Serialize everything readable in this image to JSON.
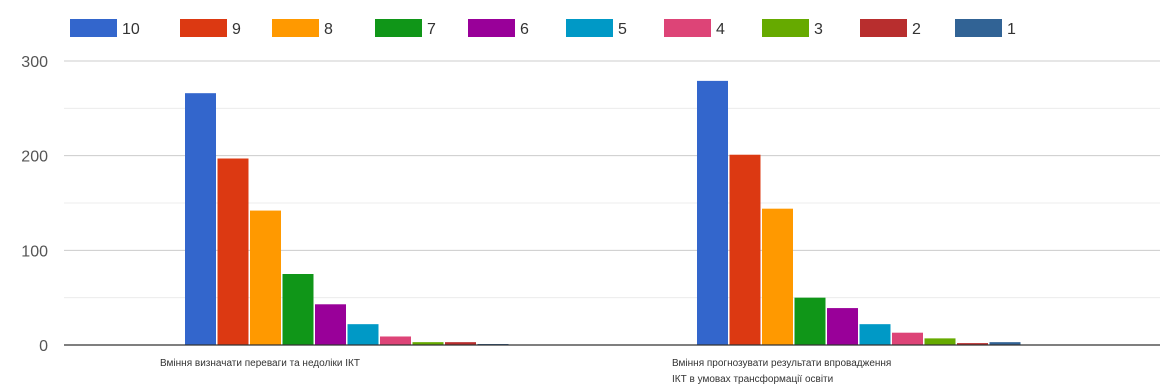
{
  "chart_data": {
    "type": "bar",
    "categories": [
      [
        "Вміння визначати переваги та недоліки ІКТ"
      ],
      [
        "Вміння прогнозувати результати впровадження",
        "ІКТ в умовах трансформації освіти"
      ]
    ],
    "series": [
      {
        "name": "10",
        "color": "#3366cc",
        "values": [
          266,
          279
        ]
      },
      {
        "name": "9",
        "color": "#dc3912",
        "values": [
          197,
          201
        ]
      },
      {
        "name": "8",
        "color": "#ff9900",
        "values": [
          142,
          144
        ]
      },
      {
        "name": "7",
        "color": "#109618",
        "values": [
          75,
          50
        ]
      },
      {
        "name": "6",
        "color": "#990099",
        "values": [
          43,
          39
        ]
      },
      {
        "name": "5",
        "color": "#0099c6",
        "values": [
          22,
          22
        ]
      },
      {
        "name": "4",
        "color": "#dd4477",
        "values": [
          9,
          13
        ]
      },
      {
        "name": "3",
        "color": "#66aa00",
        "values": [
          3,
          7
        ]
      },
      {
        "name": "2",
        "color": "#b82e2e",
        "values": [
          3,
          2
        ]
      },
      {
        "name": "1",
        "color": "#316395",
        "values": [
          1,
          3
        ]
      }
    ],
    "ylim": [
      0,
      300
    ],
    "yticks": [
      0,
      100,
      200,
      300
    ],
    "grid": true,
    "legend": "top"
  }
}
